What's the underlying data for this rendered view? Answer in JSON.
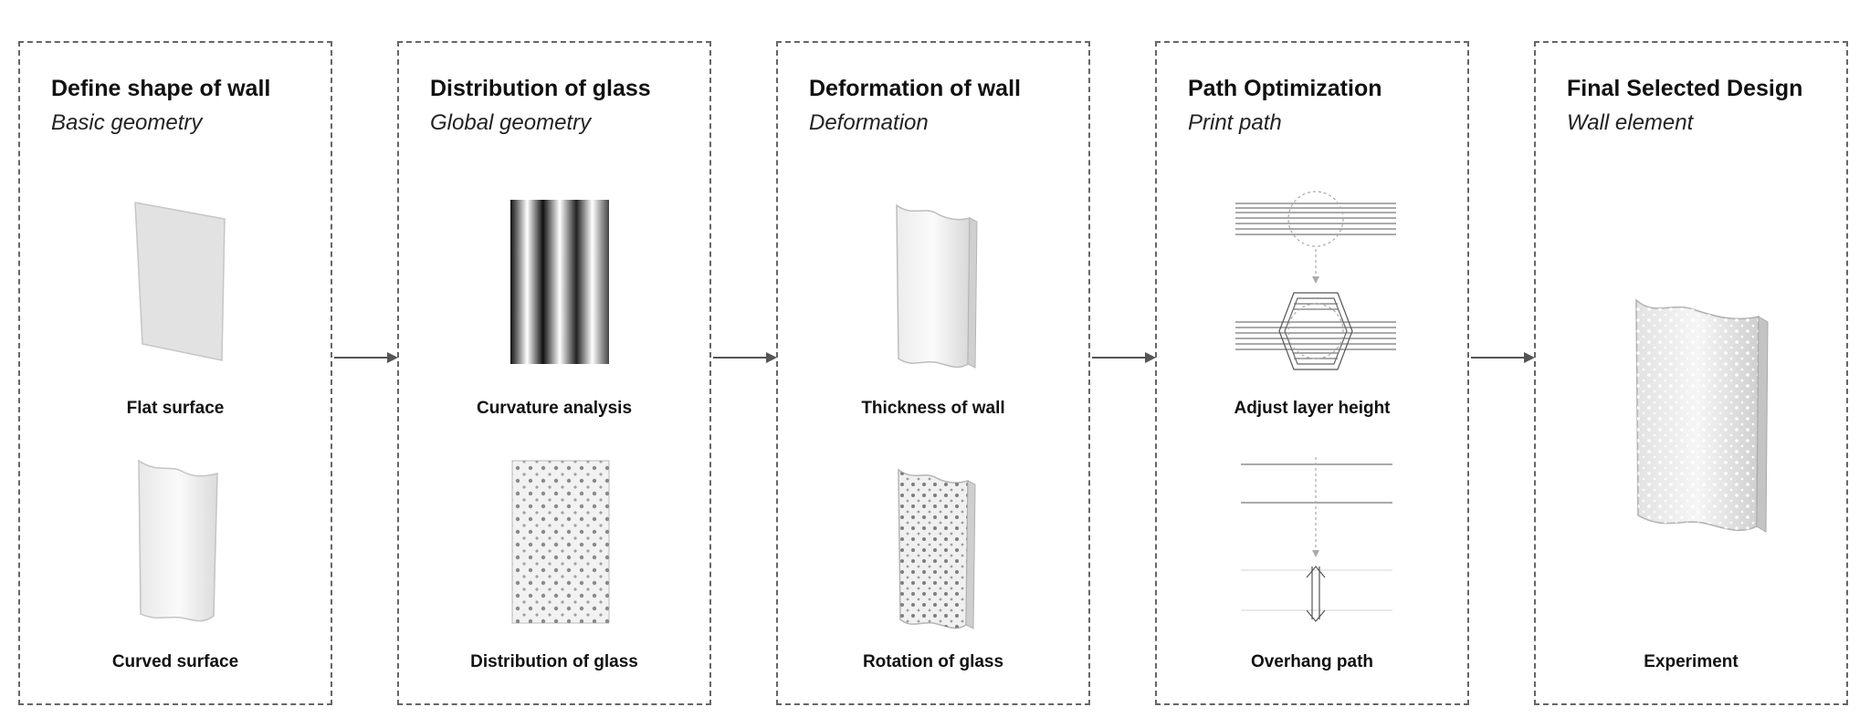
{
  "steps": [
    {
      "title": "Define shape of wall",
      "subtitle": "Basic geometry",
      "captions": [
        "Flat surface",
        "Curved surface"
      ]
    },
    {
      "title": "Distribution of glass",
      "subtitle": "Global geometry",
      "captions": [
        "Curvature analysis",
        "Distribution of glass"
      ]
    },
    {
      "title": "Deformation of wall",
      "subtitle": "Deformation",
      "captions": [
        "Thickness of wall",
        "Rotation of glass"
      ]
    },
    {
      "title": "Path Optimization",
      "subtitle": "Print path",
      "captions": [
        "Adjust layer height",
        "Overhang path"
      ]
    },
    {
      "title": "Final Selected Design",
      "subtitle": "Wall element",
      "captions": [
        "Experiment"
      ]
    }
  ],
  "colors": {
    "border": "#666666",
    "arrow": "#555555",
    "surface": "#e4e4e4",
    "text": "#111111"
  }
}
